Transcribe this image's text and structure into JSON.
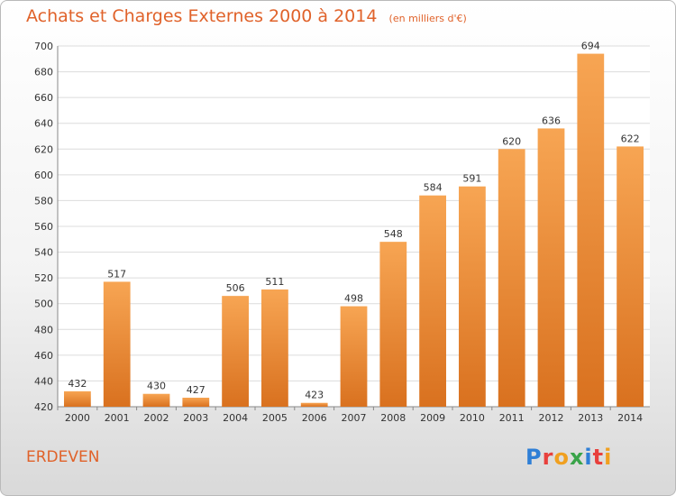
{
  "header": {
    "title": "Achats et Charges Externes 2000 à 2014",
    "unit": "(en milliers d'€)"
  },
  "footer": {
    "commune": "ERDEVEN",
    "logo_text": "Proxiti",
    "logo_colors": [
      "#2f7fd6",
      "#e8403c",
      "#f0a020",
      "#3aa44a",
      "#2f7fd6",
      "#e8403c",
      "#f0a020"
    ]
  },
  "colors": {
    "bar_light": "#f7a553",
    "bar_dark": "#d9711f",
    "title": "#e0622a",
    "grid": "#dcdcdc"
  },
  "chart_data": {
    "type": "bar",
    "categories": [
      "2000",
      "2001",
      "2002",
      "2003",
      "2004",
      "2005",
      "2006",
      "2007",
      "2008",
      "2009",
      "2010",
      "2011",
      "2012",
      "2013",
      "2014"
    ],
    "values": [
      432,
      517,
      430,
      427,
      506,
      511,
      423,
      498,
      548,
      584,
      591,
      620,
      636,
      694,
      622
    ],
    "title": "Achats et Charges Externes 2000 à 2014",
    "xlabel": "",
    "ylabel": "",
    "ylim": [
      420,
      700
    ],
    "yticks": [
      420,
      440,
      460,
      480,
      500,
      520,
      540,
      560,
      580,
      600,
      620,
      640,
      660,
      680,
      700
    ],
    "grid": true,
    "legend": "none"
  }
}
